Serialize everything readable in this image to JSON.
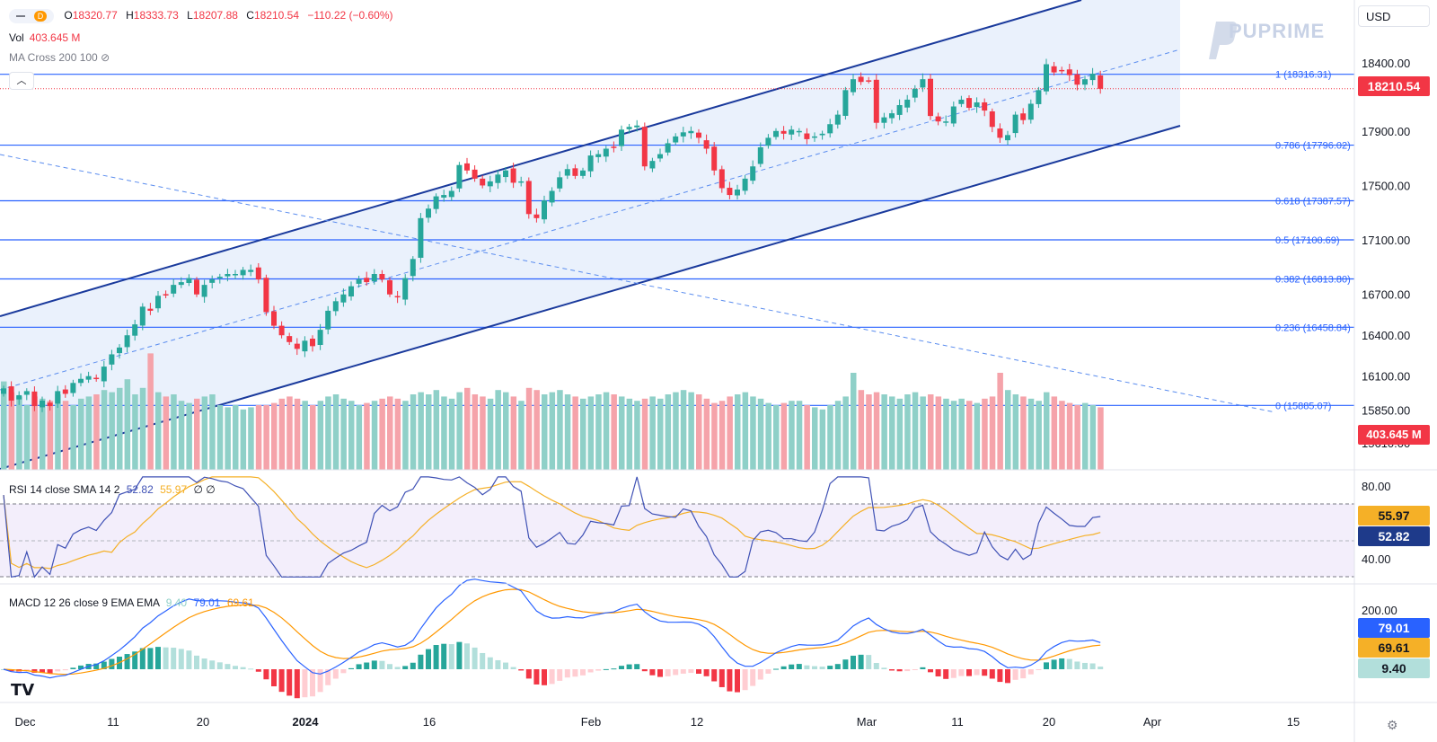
{
  "header": {
    "interval": "D",
    "open_label": "O",
    "open": "18320.77",
    "high_label": "H",
    "high": "18333.73",
    "low_label": "L",
    "low": "18207.88",
    "close_label": "C",
    "close": "18210.54",
    "change": "−110.22 (−0.60%)"
  },
  "volume_legend": {
    "label": "Vol",
    "value": "403.645 M"
  },
  "ma_legend": {
    "label": "MA Cross 200 100"
  },
  "currency": "USD",
  "logo_text": "PUPRIME",
  "colors": {
    "up": "#26a69a",
    "down": "#f23645",
    "up_vol": "#8fd0c8",
    "down_vol": "#f5a3aa",
    "channel": "#1a3a9c",
    "fib": "#2962ff",
    "rsi": "#3f51b5",
    "rsi_ma": "#f5b027",
    "macd": "#2962ff",
    "signal": "#ff9800",
    "accent": "#2962ff"
  },
  "chart_data": [
    {
      "type": "candlestick",
      "y_axis_ticks": [
        "18400.00",
        "17900.00",
        "17500.00",
        "17100.00",
        "16700.00",
        "16400.00",
        "16100.00",
        "15850.00",
        "15610.00"
      ],
      "ylim": [
        15500,
        18800
      ],
      "x_axis_ticks": [
        "Dec",
        "11",
        "20",
        "2024",
        "16",
        "Feb",
        "12",
        "Mar",
        "11",
        "20",
        "Apr",
        "15"
      ],
      "last_price": "18210.54",
      "volume_last": "403.645 M",
      "fib_levels": [
        {
          "ratio": "1",
          "price": "18316.31",
          "label": "1 (18316.31)"
        },
        {
          "ratio": "0.786",
          "price": "17796.02",
          "label": "0.786 (17796.02)"
        },
        {
          "ratio": "0.618",
          "price": "17387.57",
          "label": "0.618 (17387.57)"
        },
        {
          "ratio": "0.5",
          "price": "17100.69",
          "label": "0.5 (17100.69)"
        },
        {
          "ratio": "0.382",
          "price": "16813.80",
          "label": "0.382 (16813.80)"
        },
        {
          "ratio": "0.236",
          "price": "16458.84",
          "label": "0.236 (16458.84)"
        },
        {
          "ratio": "0",
          "price": "15885.07",
          "label": "0 (15885.07)"
        }
      ],
      "closes": [
        16010,
        15920,
        15960,
        15990,
        15880,
        15920,
        15880,
        15990,
        15970,
        16050,
        16080,
        16100,
        16080,
        16170,
        16260,
        16310,
        16400,
        16480,
        16610,
        16580,
        16690,
        16700,
        16770,
        16790,
        16820,
        16700,
        16770,
        16810,
        16830,
        16850,
        16850,
        16880,
        16880,
        16810,
        16570,
        16470,
        16400,
        16350,
        16300,
        16360,
        16320,
        16440,
        16580,
        16650,
        16700,
        16760,
        16810,
        16790,
        16850,
        16810,
        16700,
        16680,
        16820,
        16960,
        17260,
        17330,
        17420,
        17430,
        17460,
        17650,
        17610,
        17550,
        17500,
        17530,
        17580,
        17610,
        17520,
        17530,
        17290,
        17260,
        17390,
        17460,
        17560,
        17620,
        17570,
        17610,
        17720,
        17730,
        17770,
        17780,
        17910,
        17930,
        17940,
        17640,
        17680,
        17730,
        17810,
        17860,
        17890,
        17900,
        17850,
        17770,
        17610,
        17480,
        17430,
        17470,
        17550,
        17640,
        17780,
        17850,
        17900,
        17880,
        17910,
        17900,
        17840,
        17860,
        17880,
        17950,
        18020,
        18200,
        18280,
        18260,
        18270,
        17960,
        18000,
        18030,
        18090,
        18130,
        18210,
        18280,
        18010,
        17970,
        17970,
        18080,
        18130,
        18070,
        18110,
        18050,
        17930,
        17850,
        17870,
        18020,
        17980,
        18100,
        18200,
        18390,
        18330,
        18340,
        18310,
        18240,
        18280,
        18320,
        18210
      ],
      "volumes": [
        205,
        180,
        170,
        150,
        170,
        165,
        160,
        175,
        160,
        150,
        165,
        170,
        175,
        185,
        180,
        190,
        210,
        175,
        190,
        270,
        180,
        170,
        175,
        160,
        155,
        165,
        170,
        175,
        150,
        145,
        150,
        140,
        145,
        150,
        150,
        155,
        165,
        170,
        165,
        160,
        150,
        160,
        170,
        175,
        165,
        160,
        150,
        155,
        160,
        165,
        170,
        165,
        160,
        175,
        180,
        175,
        185,
        170,
        165,
        180,
        190,
        175,
        170,
        165,
        185,
        180,
        170,
        160,
        190,
        185,
        175,
        180,
        185,
        175,
        170,
        165,
        170,
        175,
        180,
        175,
        170,
        165,
        160,
        165,
        170,
        165,
        175,
        180,
        185,
        180,
        175,
        165,
        155,
        160,
        170,
        175,
        180,
        170,
        165,
        155,
        150,
        155,
        160,
        160,
        150,
        145,
        140,
        150,
        160,
        170,
        225,
        185,
        175,
        180,
        175,
        170,
        165,
        175,
        180,
        170,
        175,
        170,
        165,
        160,
        165,
        160,
        155,
        165,
        170,
        225,
        185,
        175,
        170,
        165,
        160,
        180,
        170,
        160,
        155,
        150,
        155,
        150,
        145
      ]
    },
    {
      "type": "line",
      "title": "RSI 14 close SMA 14 2",
      "values_label": [
        "52.82",
        "55.97"
      ],
      "y_axis_ticks": [
        "80.00",
        "40.00"
      ],
      "ylim": [
        30,
        85
      ],
      "series": [
        {
          "name": "RSI",
          "last": "52.82"
        },
        {
          "name": "SMA",
          "last": "55.97"
        }
      ]
    },
    {
      "type": "bar",
      "title": "MACD 12 26 close 9 EMA EMA",
      "values_label": [
        "9.40",
        "79.01",
        "69.61"
      ],
      "y_axis_ticks": [
        "200.00"
      ],
      "badges": [
        "79.01",
        "69.61",
        "9.40"
      ]
    }
  ]
}
